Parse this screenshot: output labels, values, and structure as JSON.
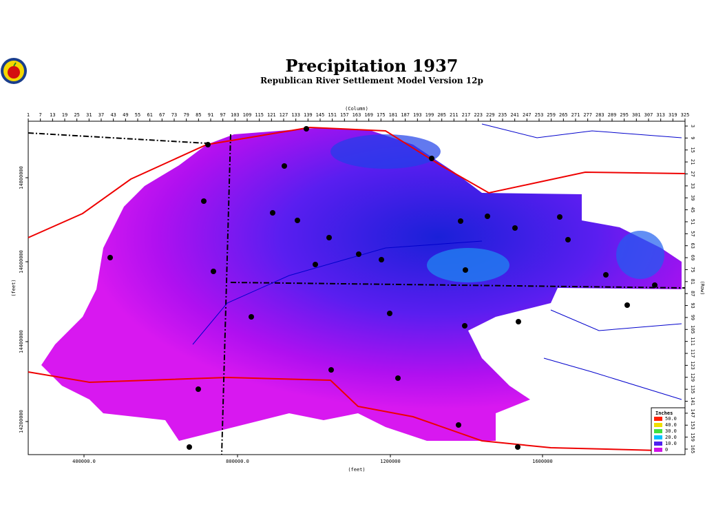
{
  "header": {
    "title": "Precipitation  1937",
    "subtitle": "Republican River Settlement Model Version 12p"
  },
  "top_axis": {
    "label": "(Column)",
    "ticks": [
      "1",
      "7",
      "13",
      "19",
      "25",
      "31",
      "37",
      "43",
      "49",
      "55",
      "61",
      "67",
      "73",
      "79",
      "85",
      "91",
      "97",
      "103",
      "109",
      "115",
      "121",
      "127",
      "133",
      "139",
      "145",
      "151",
      "157",
      "163",
      "169",
      "175",
      "181",
      "187",
      "193",
      "199",
      "205",
      "211",
      "217",
      "223",
      "229",
      "235",
      "241",
      "247",
      "253",
      "259",
      "265",
      "271",
      "277",
      "283",
      "289",
      "295",
      "301",
      "307",
      "313",
      "319",
      "325"
    ]
  },
  "right_axis": {
    "label": "(Row)",
    "ticks": [
      "3",
      "9",
      "15",
      "21",
      "27",
      "33",
      "39",
      "45",
      "51",
      "57",
      "63",
      "69",
      "75",
      "81",
      "87",
      "93",
      "99",
      "105",
      "111",
      "117",
      "123",
      "129",
      "135",
      "141",
      "147",
      "153",
      "159",
      "165"
    ]
  },
  "bottom_axis": {
    "label": "(feet)",
    "ticks": [
      "400000.0",
      "800000.0",
      "1200000",
      "1600000"
    ]
  },
  "left_axis": {
    "label": "(feet)",
    "ticks": [
      "14800000",
      "14600000",
      "14400000",
      "14200000"
    ]
  },
  "legend": {
    "title": "Inches",
    "labels": [
      "50.0",
      "40.0",
      "30.0",
      "20.0",
      "10.0",
      "0"
    ]
  }
}
